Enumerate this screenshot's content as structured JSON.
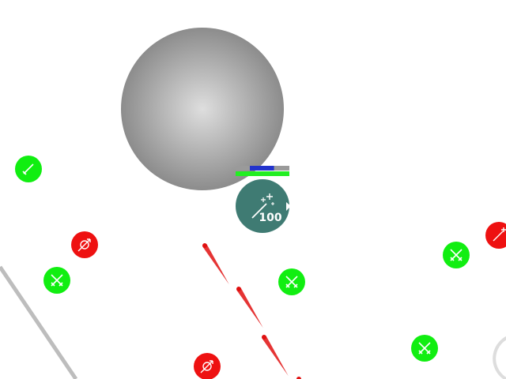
{
  "player": {
    "level_text": "100",
    "body_color": "#3f7b73",
    "icon": "magic-wand-icon",
    "health": 1.0,
    "mana": 0.45,
    "health_color": "#22ee22",
    "mana_color": "#2233cc"
  },
  "colors": {
    "ally": "#11ee11",
    "enemy": "#ee1111",
    "boulder_light": "#dedede",
    "boulder_dark": "#8c8c8c",
    "wall": "#bdbdbd",
    "projectile": "#e01010"
  },
  "units": [
    {
      "team": "ally",
      "icon": "sword-icon"
    },
    {
      "team": "enemy",
      "icon": "target-icon"
    },
    {
      "team": "ally",
      "icon": "crossed-swords-icon"
    },
    {
      "team": "ally",
      "icon": "crossed-swords-icon"
    },
    {
      "team": "enemy",
      "icon": "target-icon"
    },
    {
      "team": "ally",
      "icon": "crossed-swords-icon"
    },
    {
      "team": "enemy",
      "icon": "magic-wand-icon"
    },
    {
      "team": "ally",
      "icon": "crossed-swords-icon"
    }
  ]
}
